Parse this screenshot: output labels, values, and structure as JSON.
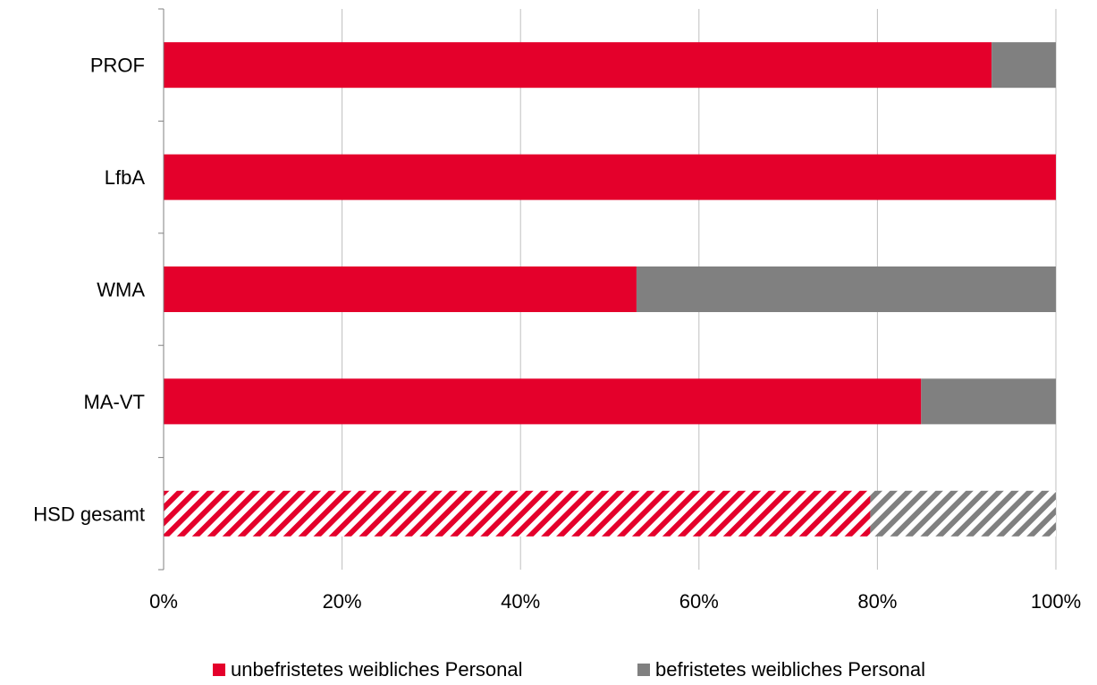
{
  "chart_data": {
    "type": "bar",
    "orientation": "horizontal",
    "stacked": "percent",
    "categories": [
      "PROF",
      "LfbA",
      "WMA",
      "MA-VT",
      "HSD gesamt"
    ],
    "series": [
      {
        "name": "unbefristetes weibliches Personal",
        "values": [
          92.8,
          100,
          53,
          84.9,
          79.2
        ],
        "color": "#e4002b"
      },
      {
        "name": "befristetes weibliches Personal",
        "values": [
          7.2,
          0,
          47,
          15.1,
          20.8
        ],
        "color": "#808080"
      }
    ],
    "hatched_categories": [
      "HSD gesamt"
    ],
    "x_ticks": [
      "0%",
      "20%",
      "40%",
      "60%",
      "80%",
      "100%"
    ],
    "xlim": [
      0,
      100
    ],
    "grid": "vertical",
    "legend_position": "bottom"
  }
}
